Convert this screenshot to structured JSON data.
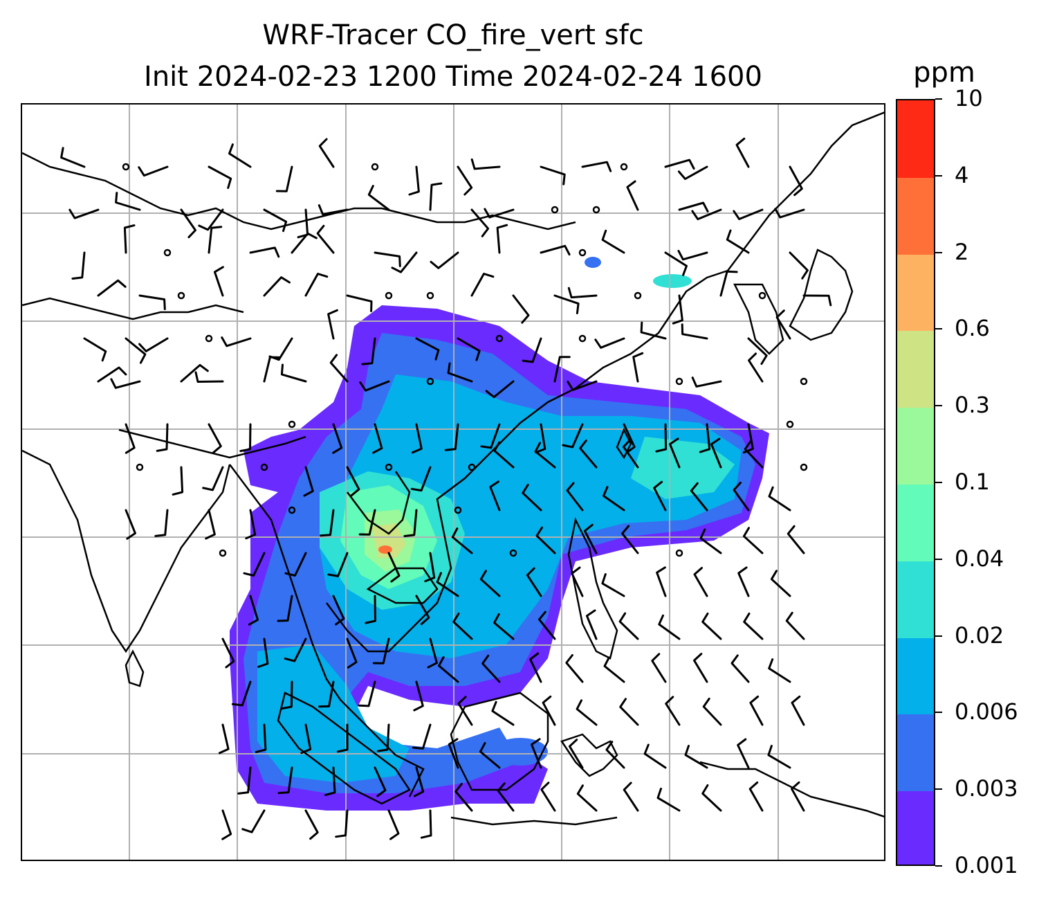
{
  "title": {
    "line1": "WRF-Tracer CO_fire_vert sfc",
    "line2": "Init 2024-02-23 1200 Time 2024-02-24 1600"
  },
  "colorbar": {
    "unit": "ppm",
    "levels": [
      {
        "label": "0.001",
        "color": "#6a2bff"
      },
      {
        "label": "0.003",
        "color": "#3671f2"
      },
      {
        "label": "0.006",
        "color": "#04b0ea"
      },
      {
        "label": "0.02",
        "color": "#31e0d4"
      },
      {
        "label": "0.04",
        "color": "#63fbb9"
      },
      {
        "label": "0.1",
        "color": "#9bf89b"
      },
      {
        "label": "0.3",
        "color": "#cde384"
      },
      {
        "label": "0.6",
        "color": "#fdb262"
      },
      {
        "label": "2",
        "color": "#ff7039"
      },
      {
        "label": "4",
        "color": "#ff2a15"
      },
      {
        "label": "10",
        "color": "#ff2a15"
      }
    ]
  },
  "map": {
    "gridlines": true,
    "features": [
      "coastlines",
      "country-borders",
      "wind-barbs",
      "calm-wind-circles",
      "tracer-fill"
    ]
  }
}
